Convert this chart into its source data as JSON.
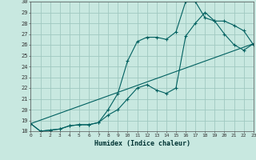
{
  "title": "",
  "xlabel": "Humidex (Indice chaleur)",
  "xlim": [
    0,
    23
  ],
  "ylim": [
    18,
    30
  ],
  "xticks": [
    0,
    1,
    2,
    3,
    4,
    5,
    6,
    7,
    8,
    9,
    10,
    11,
    12,
    13,
    14,
    15,
    16,
    17,
    18,
    19,
    20,
    21,
    22,
    23
  ],
  "yticks": [
    18,
    19,
    20,
    21,
    22,
    23,
    24,
    25,
    26,
    27,
    28,
    29,
    30
  ],
  "bg_color": "#c8e8e0",
  "grid_color": "#a0c8c0",
  "line_color": "#006060",
  "curve1_x": [
    0,
    1,
    2,
    3,
    4,
    5,
    6,
    7,
    8,
    9,
    10,
    11,
    12,
    13,
    14,
    15,
    16,
    17,
    18,
    19,
    20,
    21,
    22,
    23
  ],
  "curve1_y": [
    18.7,
    18.0,
    18.1,
    18.2,
    18.5,
    18.6,
    18.6,
    18.8,
    20.0,
    21.5,
    24.5,
    26.3,
    26.7,
    26.7,
    26.5,
    27.2,
    30.0,
    30.0,
    28.5,
    28.2,
    28.2,
    27.8,
    27.3,
    26.0
  ],
  "curve2_x": [
    0,
    1,
    2,
    3,
    4,
    5,
    6,
    7,
    8,
    9,
    10,
    11,
    12,
    13,
    14,
    15,
    16,
    17,
    18,
    19,
    20,
    21,
    22,
    23
  ],
  "curve2_y": [
    18.7,
    18.0,
    18.1,
    18.2,
    18.5,
    18.6,
    18.6,
    18.8,
    19.5,
    20.0,
    21.0,
    22.0,
    22.3,
    21.8,
    21.5,
    22.0,
    26.8,
    28.0,
    29.0,
    28.2,
    27.0,
    26.0,
    25.5,
    26.1
  ],
  "curve3_x": [
    0,
    23
  ],
  "curve3_y": [
    18.7,
    26.1
  ]
}
